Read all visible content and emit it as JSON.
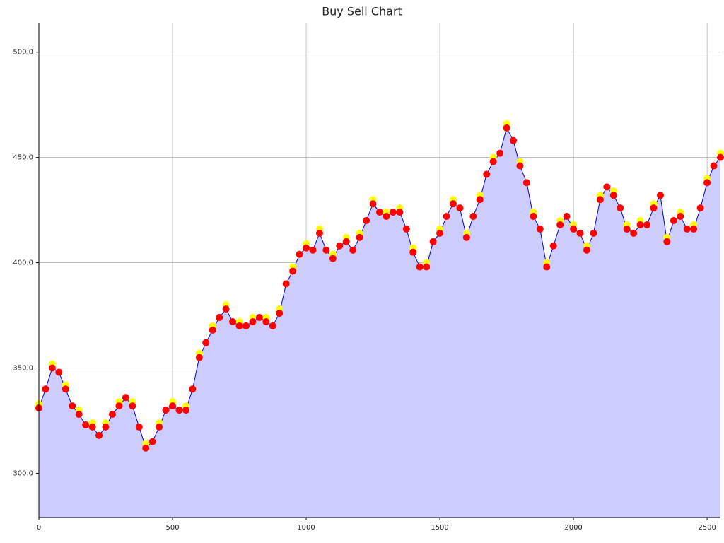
{
  "chart_data": {
    "type": "area",
    "title": "Buy Sell Chart",
    "x": [
      0,
      25,
      50,
      75,
      100,
      125,
      150,
      175,
      200,
      225,
      250,
      275,
      300,
      325,
      350,
      375,
      400,
      425,
      450,
      475,
      500,
      525,
      550,
      575,
      600,
      625,
      650,
      675,
      700,
      725,
      750,
      775,
      800,
      825,
      850,
      875,
      900,
      925,
      950,
      975,
      1000,
      1025,
      1050,
      1075,
      1100,
      1125,
      1150,
      1175,
      1200,
      1225,
      1250,
      1275,
      1300,
      1325,
      1350,
      1375,
      1400,
      1425,
      1450,
      1475,
      1500,
      1525,
      1550,
      1575,
      1600,
      1625,
      1650,
      1675,
      1700,
      1725,
      1750,
      1775,
      1800,
      1825,
      1850,
      1875,
      1900,
      1925,
      1950,
      1975,
      2000,
      2025,
      2050,
      2075,
      2100,
      2125,
      2150,
      2175,
      2200,
      2225,
      2250,
      2275,
      2300,
      2325,
      2350,
      2375,
      2400,
      2425,
      2450,
      2475,
      2500,
      2525,
      2550
    ],
    "series": [
      {
        "color": "#ccccff",
        "line_color": "#0000cc",
        "kind": "area",
        "values": [
          331,
          340,
          350,
          348,
          340,
          332,
          328,
          323,
          322,
          318,
          322,
          328,
          332,
          336,
          332,
          322,
          312,
          315,
          322,
          330,
          332,
          330,
          330,
          340,
          355,
          362,
          368,
          374,
          378,
          372,
          370,
          370,
          372,
          374,
          372,
          370,
          376,
          390,
          396,
          404,
          407,
          406,
          414,
          406,
          402,
          408,
          410,
          406,
          412,
          420,
          428,
          424,
          422,
          424,
          424,
          416,
          405,
          398,
          398,
          410,
          414,
          422,
          428,
          426,
          412,
          422,
          430,
          442,
          448,
          452,
          464,
          458,
          446,
          438,
          422,
          416,
          398,
          408,
          418,
          422,
          416,
          414,
          406,
          414,
          430,
          436,
          432,
          426,
          416,
          414,
          418,
          418,
          426,
          432,
          410,
          420,
          422,
          416,
          416,
          426,
          438,
          446,
          450
        ]
      },
      {
        "color": "#ffff00",
        "kind": "markers",
        "x": [
          0,
          50,
          100,
          150,
          200,
          250,
          300,
          350,
          400,
          450,
          500,
          550,
          600,
          650,
          700,
          750,
          800,
          850,
          900,
          950,
          1000,
          1050,
          1100,
          1150,
          1200,
          1250,
          1300,
          1350,
          1400,
          1450,
          1500,
          1550,
          1600,
          1650,
          1700,
          1750,
          1800,
          1850,
          1900,
          1950,
          2000,
          2050,
          2100,
          2150,
          2200,
          2250,
          2300,
          2350,
          2400,
          2450,
          2500,
          2550
        ],
        "values": [
          333,
          352,
          342,
          330,
          324,
          324,
          334,
          334,
          314,
          324,
          334,
          332,
          357,
          370,
          380,
          372,
          374,
          374,
          378,
          398,
          409,
          416,
          404,
          412,
          414,
          430,
          424,
          426,
          407,
          400,
          416,
          430,
          414,
          432,
          450,
          466,
          448,
          424,
          400,
          420,
          418,
          408,
          432,
          434,
          418,
          420,
          428,
          412,
          424,
          418,
          440,
          452
        ]
      },
      {
        "color": "#ff0000",
        "kind": "markers",
        "values": [
          331,
          340,
          350,
          348,
          340,
          332,
          328,
          323,
          322,
          318,
          322,
          328,
          332,
          336,
          332,
          322,
          312,
          315,
          322,
          330,
          332,
          330,
          330,
          340,
          355,
          362,
          368,
          374,
          378,
          372,
          370,
          370,
          372,
          374,
          372,
          370,
          376,
          390,
          396,
          404,
          407,
          406,
          414,
          406,
          402,
          408,
          410,
          406,
          412,
          420,
          428,
          424,
          422,
          424,
          424,
          416,
          405,
          398,
          398,
          410,
          414,
          422,
          428,
          426,
          412,
          422,
          430,
          442,
          448,
          452,
          464,
          458,
          446,
          438,
          422,
          416,
          398,
          408,
          418,
          422,
          416,
          414,
          406,
          414,
          430,
          436,
          432,
          426,
          416,
          414,
          418,
          418,
          426,
          432,
          410,
          420,
          422,
          416,
          416,
          426,
          438,
          446,
          450
        ]
      }
    ],
    "xlim": [
      0,
      2550
    ],
    "ylim": [
      279,
      514
    ],
    "xticks": [
      0,
      500,
      1000,
      1500,
      2000,
      2500
    ],
    "yticks": [
      {
        "value": 300,
        "label": "300.0"
      },
      {
        "value": 350,
        "label": "350.0"
      },
      {
        "value": 400,
        "label": "400.0"
      },
      {
        "value": 450,
        "label": "450.0"
      },
      {
        "value": 500,
        "label": "500.0"
      }
    ],
    "grid": true
  }
}
